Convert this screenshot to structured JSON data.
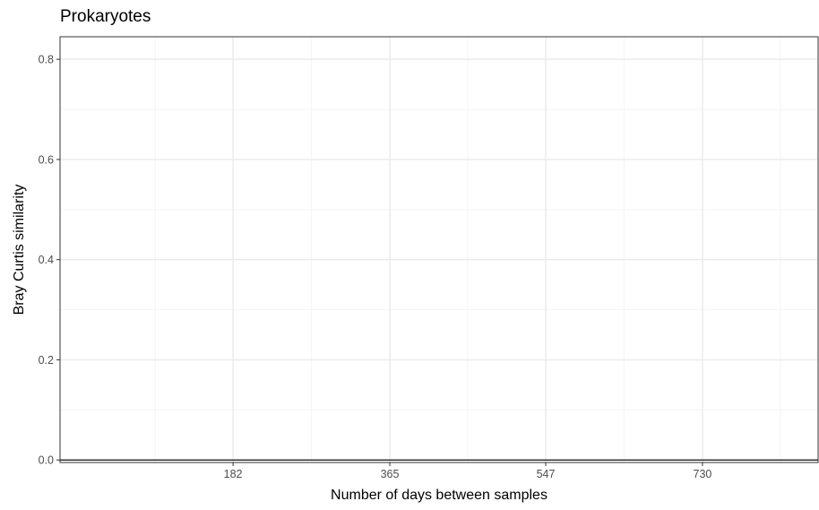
{
  "chart_data": {
    "type": "scatter",
    "title": "Prokaryotes",
    "xlabel": "Number of days between samples",
    "ylabel": "Bray Curtis similarity",
    "xlim": [
      -20,
      865
    ],
    "ylim": [
      -0.005,
      0.845
    ],
    "x_ticks": [
      182,
      365,
      547,
      730
    ],
    "x_tick_labels": [
      "182",
      "365",
      "547",
      "730"
    ],
    "x_minor_ticks": [
      91,
      273.5,
      456,
      638.5,
      821
    ],
    "y_ticks": [
      0.0,
      0.2,
      0.4,
      0.6,
      0.8
    ],
    "y_tick_labels": [
      "0.0",
      "0.2",
      "0.4",
      "0.6",
      "0.8"
    ],
    "y_minor_ticks": [
      0.1,
      0.3,
      0.5,
      0.7
    ],
    "grid": true,
    "reference_line_y": 0,
    "series": [
      {
        "points": []
      }
    ],
    "colors": {
      "background": "#ffffff",
      "panel_border": "#333333",
      "grid_major": "#ebebeb",
      "grid_minor": "#f5f5f5",
      "axis_text": "#4d4d4d",
      "tick_mark": "#333333",
      "reference_line": "#333333"
    }
  }
}
